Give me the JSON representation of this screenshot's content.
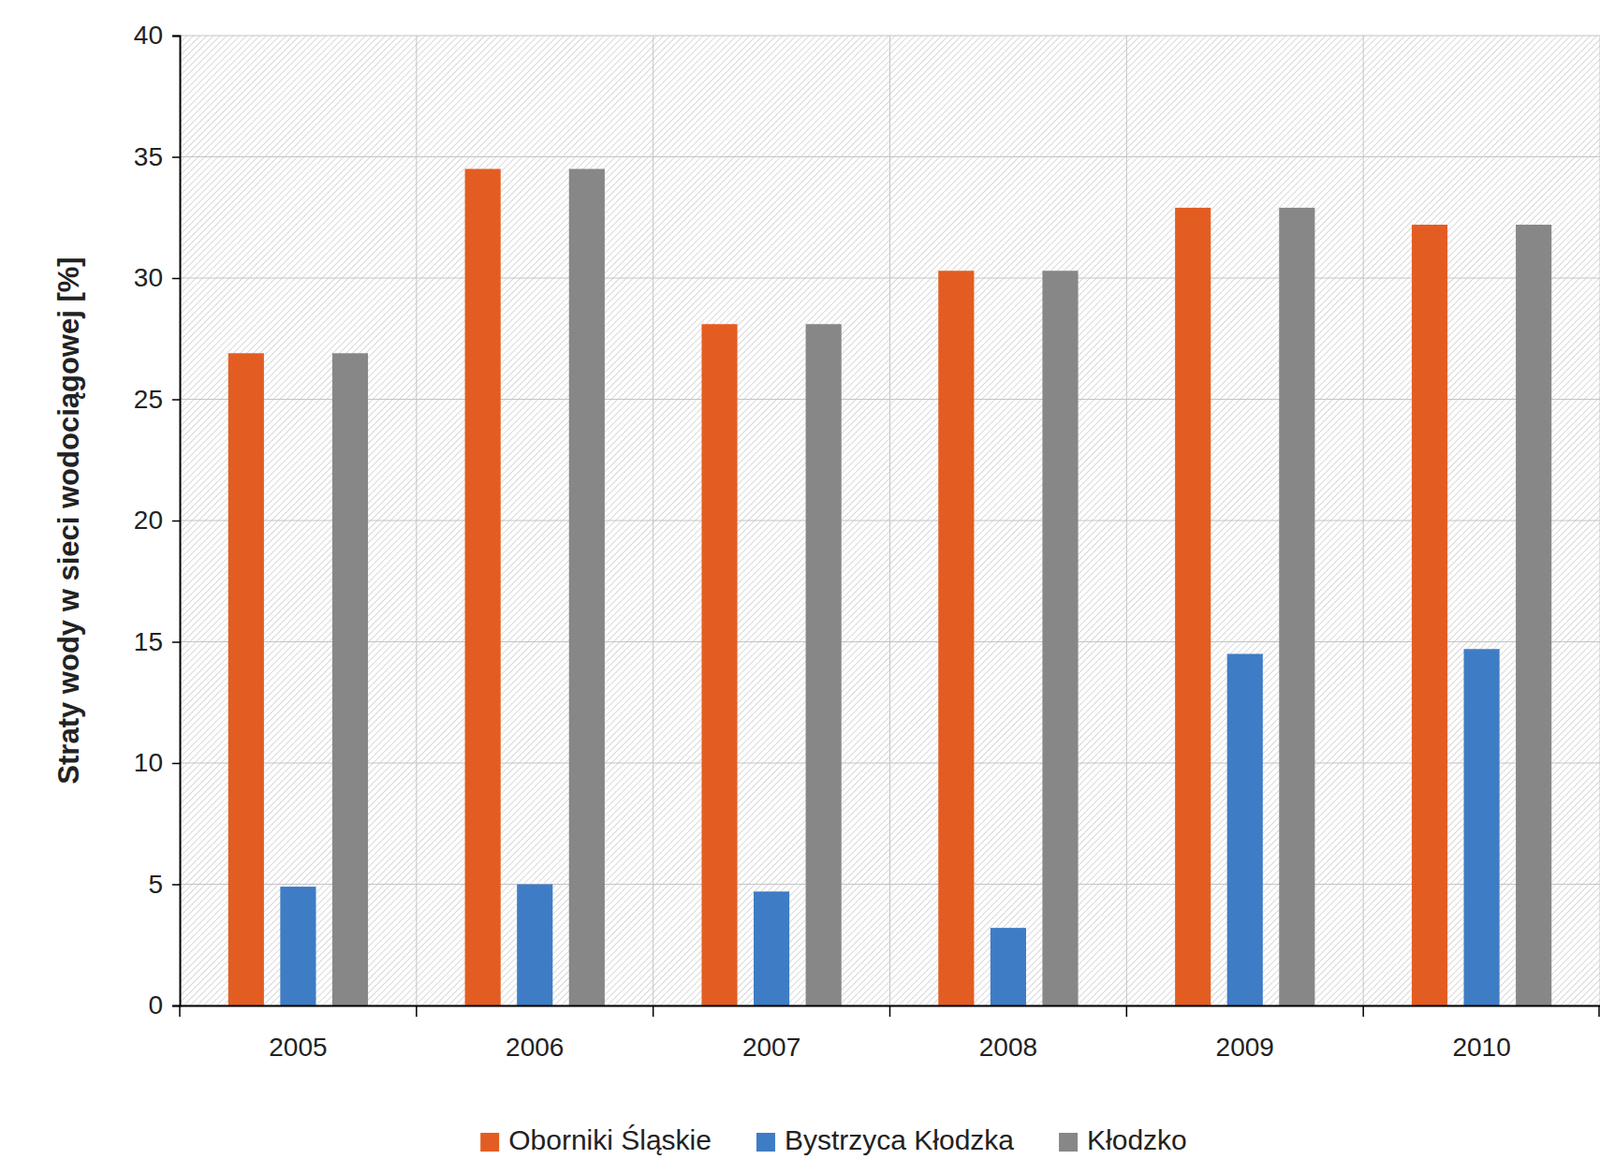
{
  "chart_data": {
    "type": "bar",
    "y_label": "Straty wody w sieci wodociągowej [%]",
    "categories": [
      "2005",
      "2006",
      "2007",
      "2008",
      "2009",
      "2010"
    ],
    "series": [
      {
        "name": "Oborniki Śląskie",
        "color": "#e35d22",
        "values": [
          26.9,
          34.5,
          28.1,
          30.3,
          32.9,
          32.2
        ]
      },
      {
        "name": "Bystrzyca Kłodzka",
        "color": "#3e7cc5",
        "values": [
          4.9,
          5.0,
          4.7,
          3.2,
          14.5,
          14.7
        ]
      },
      {
        "name": "Kłodzko",
        "color": "#878787",
        "values": [
          26.9,
          34.5,
          28.1,
          30.3,
          32.9,
          32.2
        ]
      }
    ],
    "ylim": [
      0,
      40
    ],
    "yticks": [
      0,
      5,
      10,
      15,
      20,
      25,
      30,
      35,
      40
    ],
    "grid": true,
    "legend": "bottom"
  }
}
